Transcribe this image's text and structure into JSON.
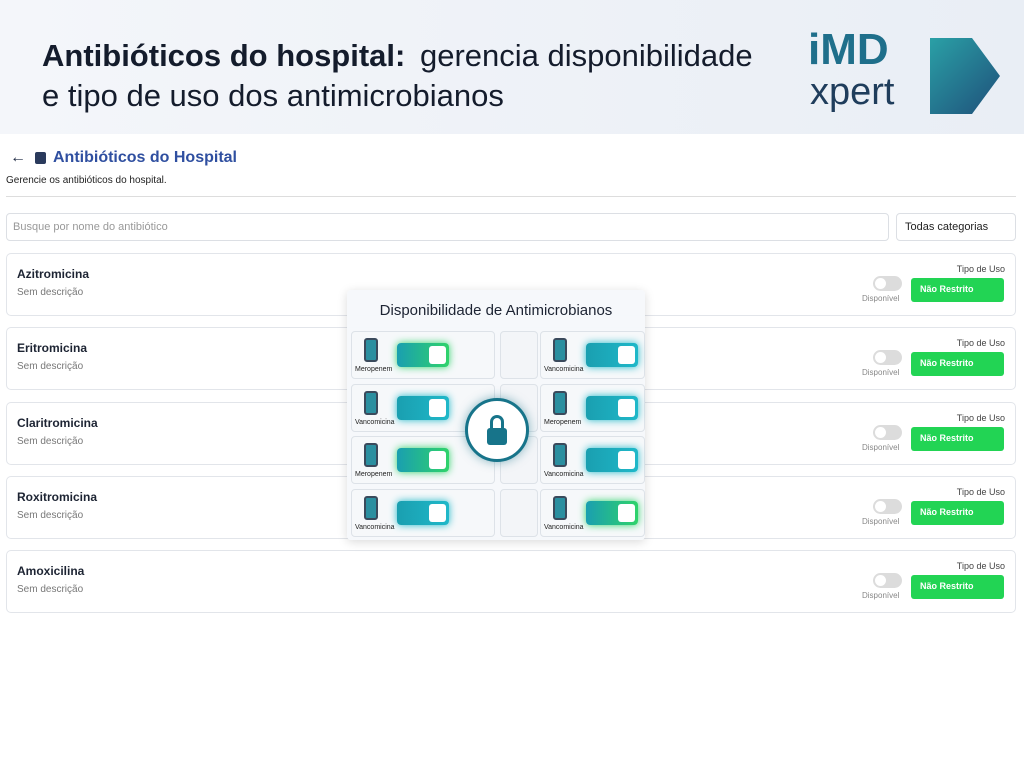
{
  "banner": {
    "title_bold": "Antibióticos do hospital:",
    "title_rest": "gerencia disponibilidade",
    "title_line2": "e tipo de uso dos antimicrobianos",
    "logo_top": "iMD",
    "logo_bottom": "xpert"
  },
  "header": {
    "title": "Antibióticos do Hospital",
    "subtitle": "Gerencie os antibióticos do hospital."
  },
  "search": {
    "placeholder": "Busque por nome do antibiótico",
    "category": "Todas categorias"
  },
  "items": [
    {
      "name": "Azitromicina",
      "description": "Sem descrição",
      "usage_label": "Tipo de Uso",
      "toggle_label": "Disponível",
      "usage": "Não Restrito"
    },
    {
      "name": "Eritromicina",
      "description": "Sem descrição",
      "usage_label": "Tipo de Uso",
      "toggle_label": "Disponível",
      "usage": "Não Restrito"
    },
    {
      "name": "Claritromicina",
      "description": "Sem descrição",
      "usage_label": "Tipo de Uso",
      "toggle_label": "Disponível",
      "usage": "Não Restrito"
    },
    {
      "name": "Roxitromicina",
      "description": "Sem descrição",
      "usage_label": "Tipo de Uso",
      "toggle_label": "Disponível",
      "usage": "Não Restrito"
    },
    {
      "name": "Amoxicilina",
      "description": "Sem descrição",
      "usage_label": "Tipo de Uso",
      "toggle_label": "Disponível",
      "usage": "Não Restrito"
    }
  ],
  "overlay": {
    "title": "Disponibilidade de Antimicrobianos",
    "cells": [
      [
        {
          "label": "Meropenem",
          "color": "#2fd36a"
        },
        {
          "label": "Vancomicina",
          "color": "#1fb8c9"
        }
      ],
      [
        {
          "label": "Vancomicina",
          "color": "#1fb8c9"
        },
        {
          "label": "Meropenem",
          "color": "#1fb8c9"
        }
      ],
      [
        {
          "label": "Meropenem",
          "color": "#2fd36a"
        },
        {
          "label": "Vancomicina",
          "color": "#1fb8c9"
        }
      ],
      [
        {
          "label": "Vancomicina",
          "color": "#1fb8c9"
        },
        {
          "label": "Vancomicina",
          "color": "#2fd36a"
        }
      ]
    ]
  }
}
